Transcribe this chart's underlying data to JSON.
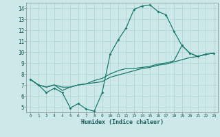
{
  "xlabel": "Humidex (Indice chaleur)",
  "xlim": [
    -0.5,
    23.5
  ],
  "ylim": [
    4.5,
    14.5
  ],
  "xticks": [
    0,
    1,
    2,
    3,
    4,
    5,
    6,
    7,
    8,
    9,
    10,
    11,
    12,
    13,
    14,
    15,
    16,
    17,
    18,
    19,
    20,
    21,
    22,
    23
  ],
  "yticks": [
    5,
    6,
    7,
    8,
    9,
    10,
    11,
    12,
    13,
    14
  ],
  "bg_color": "#cce8e8",
  "grid_color": "#b8d8d8",
  "line_color": "#1a7a6e",
  "line1_x": [
    0,
    1,
    2,
    3,
    4,
    5,
    6,
    7,
    8,
    9,
    10,
    11,
    12,
    13,
    14,
    15,
    16,
    17,
    18,
    19,
    20,
    21,
    22,
    23
  ],
  "line1_y": [
    7.5,
    7.0,
    6.3,
    6.7,
    6.3,
    4.9,
    5.3,
    4.8,
    4.6,
    6.3,
    9.8,
    11.1,
    12.2,
    13.9,
    14.2,
    14.3,
    13.7,
    13.4,
    11.9,
    10.6,
    9.9,
    9.6,
    9.8,
    9.9
  ],
  "line2_x": [
    0,
    1,
    2,
    3,
    4,
    5,
    6,
    7,
    8,
    9,
    10,
    11,
    12,
    13,
    14,
    15,
    16,
    17,
    18,
    19,
    20,
    21,
    22,
    23
  ],
  "line2_y": [
    7.5,
    7.0,
    6.8,
    7.0,
    6.8,
    6.8,
    7.0,
    7.1,
    7.2,
    7.3,
    7.7,
    7.9,
    8.1,
    8.3,
    8.5,
    8.6,
    8.8,
    8.9,
    9.1,
    9.3,
    9.5,
    9.6,
    9.8,
    9.9
  ],
  "line3_x": [
    0,
    1,
    2,
    3,
    4,
    5,
    6,
    7,
    8,
    9,
    10,
    11,
    12,
    13,
    14,
    15,
    16,
    17,
    18,
    19,
    20,
    21,
    22,
    23
  ],
  "line3_y": [
    7.5,
    7.0,
    6.8,
    7.0,
    6.5,
    6.8,
    7.0,
    7.1,
    7.4,
    7.6,
    8.0,
    8.3,
    8.5,
    8.5,
    8.6,
    8.7,
    8.9,
    9.0,
    9.2,
    10.6,
    9.9,
    9.6,
    9.8,
    9.9
  ]
}
